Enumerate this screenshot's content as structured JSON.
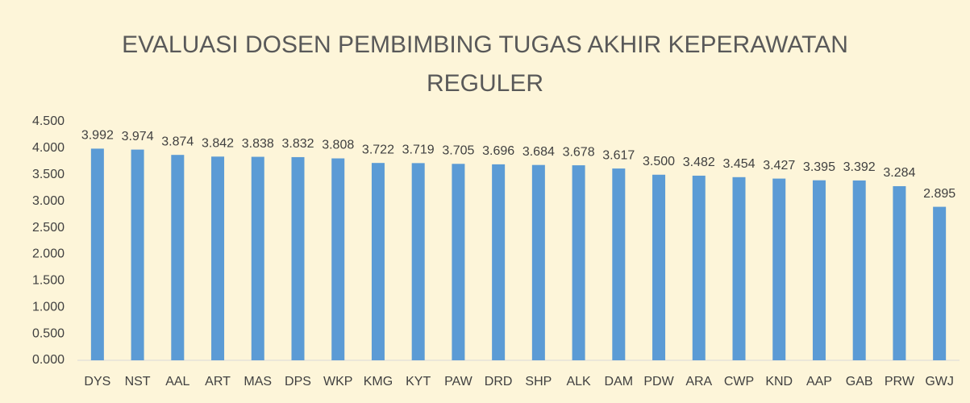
{
  "chart_data": {
    "type": "bar",
    "title": "EVALUASI DOSEN PEMBIMBING TUGAS AKHIR KEPERAWATAN REGULER",
    "categories": [
      "DYS",
      "NST",
      "AAL",
      "ART",
      "MAS",
      "DPS",
      "WKP",
      "KMG",
      "KYT",
      "PAW",
      "DRD",
      "SHP",
      "ALK",
      "DAM",
      "PDW",
      "ARA",
      "CWP",
      "KND",
      "AAP",
      "GAB",
      "PRW",
      "GWJ"
    ],
    "values": [
      3.992,
      3.974,
      3.874,
      3.842,
      3.838,
      3.832,
      3.808,
      3.722,
      3.719,
      3.705,
      3.696,
      3.684,
      3.678,
      3.617,
      3.5,
      3.482,
      3.454,
      3.427,
      3.395,
      3.392,
      3.284,
      2.895
    ],
    "value_labels": [
      "3.992",
      "3.974",
      "3.874",
      "3.842",
      "3.838",
      "3.832",
      "3.808",
      "3.722",
      "3.719",
      "3.705",
      "3.696",
      "3.684",
      "3.678",
      "3.617",
      "3.500",
      "3.482",
      "3.454",
      "3.427",
      "3.395",
      "3.392",
      "3.284",
      "2.895"
    ],
    "color": "#5b9bd5",
    "ylim": [
      0,
      4.5
    ],
    "yticks": [
      {
        "value": 0,
        "label": "0.000"
      },
      {
        "value": 0.5,
        "label": "0.500"
      },
      {
        "value": 1,
        "label": "1.000"
      },
      {
        "value": 1.5,
        "label": "1.500"
      },
      {
        "value": 2,
        "label": "2.000"
      },
      {
        "value": 2.5,
        "label": "2.500"
      },
      {
        "value": 3,
        "label": "3.000"
      },
      {
        "value": 3.5,
        "label": "3.500"
      },
      {
        "value": 4,
        "label": "4.000"
      },
      {
        "value": 4.5,
        "label": "4.500"
      }
    ],
    "grid": false
  }
}
